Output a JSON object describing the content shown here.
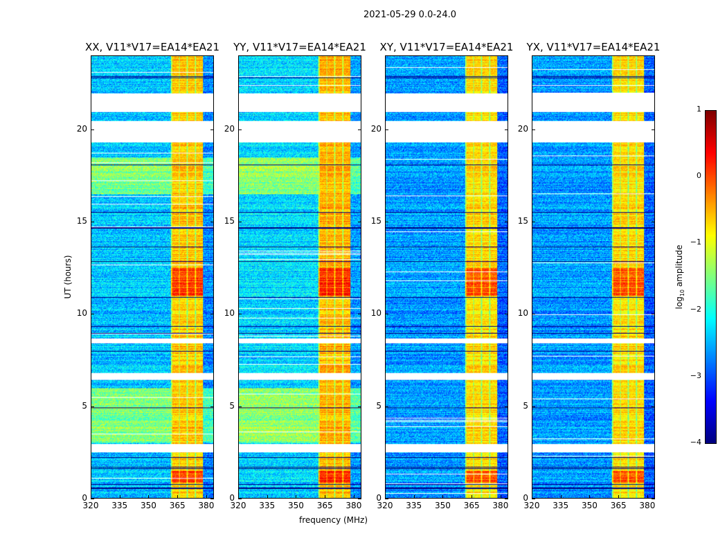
{
  "suptitle": "2021-05-29 0.0-24.0",
  "chart_data": {
    "type": "heatmap",
    "title": "2021-05-29 0.0-24.0",
    "xlabel": "frequency (MHz)",
    "ylabel": "UT (hours)",
    "xlim": [
      320,
      384
    ],
    "ylim": [
      0,
      24
    ],
    "xticks": [
      "320",
      "335",
      "350",
      "365",
      "380"
    ],
    "xtick_values": [
      320,
      335,
      350,
      365,
      380
    ],
    "yticks": [
      "0",
      "5",
      "10",
      "15",
      "20"
    ],
    "ytick_values": [
      0,
      5,
      10,
      15,
      20
    ],
    "panels": [
      {
        "title": "XX, V11*V17=EA14*EA21",
        "level_low": -2.4,
        "level_band": -0.6
      },
      {
        "title": "YY, V11*V17=EA14*EA21",
        "level_low": -2.3,
        "level_band": -0.5
      },
      {
        "title": "XY, V11*V17=EA14*EA21",
        "level_low": -2.6,
        "level_band": -0.7
      },
      {
        "title": "YX, V11*V17=EA14*EA21",
        "level_low": -2.6,
        "level_band": -0.7
      }
    ],
    "bright_band_mhz": [
      361.5,
      378.5
    ],
    "flagged_hours": [
      [
        2.5,
        2.95
      ],
      [
        6.45,
        6.8
      ],
      [
        8.4,
        8.7
      ],
      [
        19.35,
        20.5
      ],
      [
        21.0,
        22.0
      ]
    ],
    "colorbar": {
      "label": "log10 amplitude",
      "label_main": "log",
      "label_sub": "10",
      "label_rest": " amplitude",
      "range": [
        -4,
        1
      ],
      "ticks": [
        "−4",
        "−3",
        "−2",
        "−1",
        "0",
        "1"
      ],
      "tick_values": [
        -4,
        -3,
        -2,
        -1,
        0,
        1
      ],
      "colormap": "jet"
    }
  }
}
